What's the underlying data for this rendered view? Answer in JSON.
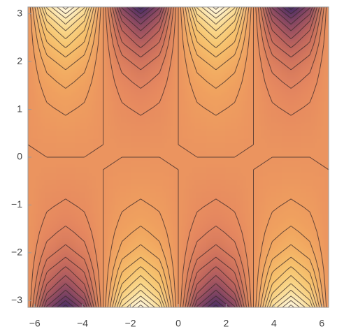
{
  "chart_data": {
    "type": "contour",
    "x": [
      -6.283,
      -5.498,
      -4.712,
      -3.927,
      -3.142,
      -2.356,
      -1.571,
      -0.785,
      0,
      0.785,
      1.571,
      2.356,
      3.142,
      3.927,
      4.712,
      5.498,
      6.283
    ],
    "y": [
      -3.142,
      -2.88,
      -2.618,
      -2.356,
      -2.094,
      -1.833,
      -1.571,
      -1.309,
      -1.047,
      -0.785,
      -0.524,
      -0.262,
      0,
      0.262,
      0.524,
      0.785,
      1.047,
      1.309,
      1.571,
      1.833,
      2.094,
      2.356,
      2.618,
      2.88,
      3.142
    ],
    "z": [
      [
        0,
        -8.17,
        -11.55,
        -8.17,
        0,
        8.17,
        11.55,
        8.17,
        0,
        -8.17,
        -11.55,
        -8.17,
        0,
        8.17,
        11.55,
        8.17,
        0
      ],
      [
        0,
        -6.16,
        -8.72,
        -6.16,
        0,
        6.16,
        8.72,
        6.16,
        0,
        -6.16,
        -8.72,
        -6.16,
        0,
        6.16,
        8.72,
        6.16,
        0
      ],
      [
        0,
        -4.81,
        -6.8,
        -4.81,
        0,
        4.81,
        6.8,
        4.81,
        0,
        -4.81,
        -6.8,
        -4.81,
        0,
        4.81,
        6.8,
        4.81,
        0
      ],
      [
        0,
        -3.77,
        -5.33,
        -3.77,
        0,
        3.77,
        5.33,
        3.77,
        0,
        -3.77,
        -5.33,
        -3.77,
        0,
        3.77,
        5.33,
        3.77,
        0
      ],
      [
        0,
        -2.83,
        -4.01,
        -2.83,
        0,
        2.83,
        4.01,
        2.83,
        0,
        -2.83,
        -4.01,
        -2.83,
        0,
        2.83,
        4.01,
        2.83,
        0
      ],
      [
        0,
        -2.13,
        -3.01,
        -2.13,
        0,
        2.13,
        3.01,
        2.13,
        0,
        -2.13,
        -3.01,
        -2.13,
        0,
        2.13,
        3.01,
        2.13,
        0
      ],
      [
        0,
        -1.63,
        -2.3,
        -1.63,
        0,
        1.63,
        2.3,
        1.63,
        0,
        -1.63,
        -2.3,
        -1.63,
        0,
        1.63,
        2.3,
        1.63,
        0
      ],
      [
        0,
        -1.2,
        -1.7,
        -1.2,
        0,
        1.2,
        1.7,
        1.2,
        0,
        -1.2,
        -1.7,
        -1.2,
        0,
        1.2,
        1.7,
        1.2,
        0
      ],
      [
        0,
        -0.88,
        -1.25,
        -0.88,
        0,
        0.88,
        1.25,
        0.88,
        0,
        -0.88,
        -1.25,
        -0.88,
        0,
        0.88,
        1.25,
        0.88,
        0
      ],
      [
        0,
        -0.61,
        -0.87,
        -0.61,
        0,
        0.61,
        0.87,
        0.61,
        0,
        -0.61,
        -0.87,
        -0.61,
        0,
        0.61,
        0.87,
        0.61,
        0
      ],
      [
        0,
        -0.39,
        -0.55,
        -0.39,
        0,
        0.39,
        0.55,
        0.39,
        0,
        -0.39,
        -0.55,
        -0.39,
        0,
        0.39,
        0.55,
        0.39,
        0
      ],
      [
        0,
        -0.19,
        -0.26,
        -0.19,
        0,
        0.19,
        0.26,
        0.19,
        0,
        -0.19,
        -0.26,
        -0.19,
        0,
        0.19,
        0.26,
        0.19,
        0
      ],
      [
        0,
        0,
        0,
        0,
        0,
        0,
        0,
        0,
        0,
        0,
        0,
        0,
        0,
        0,
        0,
        0,
        0
      ],
      [
        0,
        0.19,
        0.26,
        0.19,
        0,
        -0.19,
        -0.26,
        -0.19,
        0,
        0.19,
        0.26,
        0.19,
        0,
        -0.19,
        -0.26,
        -0.19,
        0
      ],
      [
        0,
        0.39,
        0.55,
        0.39,
        0,
        -0.39,
        -0.55,
        -0.39,
        0,
        0.39,
        0.55,
        0.39,
        0,
        -0.39,
        -0.55,
        -0.39,
        0
      ],
      [
        0,
        0.61,
        0.87,
        0.61,
        0,
        -0.61,
        -0.87,
        -0.61,
        0,
        0.61,
        0.87,
        0.61,
        0,
        -0.61,
        -0.87,
        -0.61,
        0
      ],
      [
        0,
        0.88,
        1.25,
        0.88,
        0,
        -0.88,
        -1.25,
        -0.88,
        0,
        0.88,
        1.25,
        0.88,
        0,
        -0.88,
        -1.25,
        -0.88,
        0
      ],
      [
        0,
        1.2,
        1.7,
        1.2,
        0,
        -1.2,
        -1.7,
        -1.2,
        0,
        1.2,
        1.7,
        1.2,
        0,
        -1.2,
        -1.7,
        -1.2,
        0
      ],
      [
        0,
        1.63,
        2.3,
        1.63,
        0,
        -1.63,
        -2.3,
        -1.63,
        0,
        1.63,
        2.3,
        1.63,
        0,
        -1.63,
        -2.3,
        -1.63,
        0
      ],
      [
        0,
        2.13,
        3.01,
        2.13,
        0,
        -2.13,
        -3.01,
        -2.13,
        0,
        2.13,
        3.01,
        2.13,
        0,
        -2.13,
        -3.01,
        -2.13,
        0
      ],
      [
        0,
        2.83,
        4.01,
        2.83,
        0,
        -2.83,
        -4.01,
        -2.83,
        0,
        2.83,
        4.01,
        2.83,
        0,
        -2.83,
        -4.01,
        -2.83,
        0
      ],
      [
        0,
        3.77,
        5.33,
        3.77,
        0,
        -3.77,
        -5.33,
        -3.77,
        0,
        3.77,
        5.33,
        3.77,
        0,
        -3.77,
        -5.33,
        -3.77,
        0
      ],
      [
        0,
        4.81,
        6.8,
        4.81,
        0,
        -4.81,
        -6.8,
        -4.81,
        0,
        4.81,
        6.8,
        4.81,
        0,
        -4.81,
        -6.8,
        -4.81,
        0
      ],
      [
        0,
        6.16,
        8.72,
        6.16,
        0,
        -6.16,
        -8.72,
        -6.16,
        0,
        6.16,
        8.72,
        6.16,
        0,
        -6.16,
        -8.72,
        -6.16,
        0
      ],
      [
        0,
        8.17,
        11.55,
        8.17,
        0,
        -8.17,
        -11.55,
        -8.17,
        0,
        8.17,
        11.55,
        8.17,
        0,
        -8.17,
        -11.55,
        -8.17,
        0
      ]
    ],
    "zlim": [
      -11.55,
      11.55
    ],
    "levels": [
      -11,
      -10,
      -9,
      -8,
      -7,
      -6,
      -5,
      -4,
      -3,
      -2,
      -1,
      0,
      1,
      2,
      3,
      4,
      5,
      6,
      7,
      8,
      9,
      10,
      11
    ],
    "colormap": [
      "#2a2766",
      "#7a3f63",
      "#c0645c",
      "#e5875e",
      "#f0a15e",
      "#f7c46c",
      "#fbe39a",
      "#fffcec"
    ],
    "xlim": [
      -6.283,
      6.283
    ],
    "ylim": [
      -3.142,
      3.142
    ],
    "xticks": [
      {
        "value": -6,
        "label": "−6"
      },
      {
        "value": -4,
        "label": "−4"
      },
      {
        "value": -2,
        "label": "−2"
      },
      0,
      2,
      4,
      6
    ],
    "yticks": [
      {
        "value": -3,
        "label": "−3"
      },
      {
        "value": -2,
        "label": "−2"
      },
      {
        "value": -1,
        "label": "−1"
      },
      0,
      1,
      2,
      3
    ]
  }
}
